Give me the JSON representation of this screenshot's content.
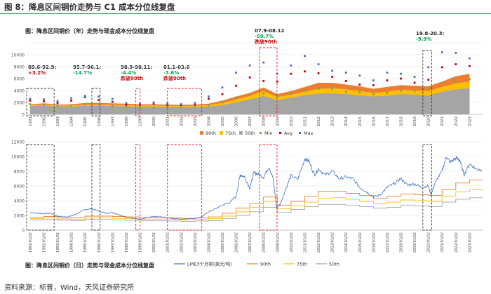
{
  "page": {
    "figure_title": "图 8：降息区间铜价走势与 C1 成本分位线复盘",
    "source": "资料来源：标普，Wind，天风证券研究所"
  },
  "colors": {
    "p90": "#ed7d31",
    "p75": "#ffc000",
    "p50": "#a5a5a5",
    "min": "#70ad47",
    "avg": "#c00000",
    "max": "#4472c4",
    "lme": "#4472c4",
    "box_black": "#333333",
    "box_red": "#e02020",
    "ann_red": "#c00000",
    "ann_green": "#00a650"
  },
  "chart_data": [
    {
      "type": "area",
      "title": "图：降息区间铜价（年）走势与现金成本分位线复盘",
      "x": [
        1991,
        1992,
        1993,
        1994,
        1995,
        1996,
        1997,
        1998,
        1999,
        2000,
        2001,
        2002,
        2003,
        2004,
        2005,
        2006,
        2007,
        2008,
        2009,
        2010,
        2011,
        2012,
        2013,
        2014,
        2015,
        2016,
        2017,
        2018,
        2019,
        2020,
        2021,
        2022,
        2023
      ],
      "x_tick_labels": [
        "1991",
        "1992",
        "1993",
        "1994",
        "1995",
        "1996",
        "1997",
        "1998",
        "1999",
        "2000",
        "2001",
        "2002",
        "2003",
        "2004",
        "2005",
        "2006",
        "2007",
        "2008",
        "2009",
        "2010",
        "2011",
        "2012",
        "2013",
        "2014",
        "2015",
        "2016",
        "2017",
        "2018",
        "2019",
        "2020",
        "2021",
        "2022",
        "2023"
      ],
      "ylim": [
        0,
        12000
      ],
      "y_ticks": [
        "0",
        "2000",
        "4000",
        "6000",
        "8000",
        "10000",
        "12000"
      ],
      "series": [
        {
          "name": "90th",
          "key": "p90",
          "values": [
            1700,
            1850,
            1650,
            1700,
            1900,
            1900,
            1850,
            1800,
            1700,
            1700,
            1650,
            1600,
            1650,
            1800,
            2300,
            3000,
            3600,
            4500,
            3400,
            3900,
            4600,
            5300,
            5300,
            5000,
            4700,
            4300,
            4600,
            4900,
            4800,
            4700,
            5500,
            6400,
            6800
          ]
        },
        {
          "name": "75th",
          "key": "p75",
          "values": [
            1550,
            1650,
            1500,
            1500,
            1650,
            1650,
            1600,
            1550,
            1500,
            1500,
            1450,
            1400,
            1450,
            1550,
            1900,
            2500,
            3100,
            3900,
            2900,
            3300,
            3800,
            4300,
            4400,
            4200,
            3900,
            3600,
            3800,
            4100,
            4000,
            3900,
            4600,
            5200,
            5500
          ]
        },
        {
          "name": "50th",
          "key": "p50",
          "values": [
            1400,
            1450,
            1350,
            1300,
            1450,
            1450,
            1400,
            1350,
            1300,
            1300,
            1250,
            1200,
            1250,
            1300,
            1550,
            2000,
            2500,
            3100,
            2400,
            2800,
            3200,
            3500,
            3500,
            3400,
            3200,
            3000,
            3100,
            3400,
            3300,
            3200,
            3800,
            4200,
            4400
          ]
        }
      ],
      "markers": [
        {
          "name": "Min",
          "key": "min",
          "values": [
            1700,
            1600,
            1500,
            1500,
            1700,
            1700,
            1400,
            1200,
            1100,
            1100,
            1200,
            1200,
            1300,
            1500,
            2000,
            2800,
            3200,
            3500,
            3000,
            3500,
            4000,
            4300,
            4300,
            3800,
            3700,
            3400,
            3600,
            4000,
            3900,
            4400,
            5300,
            5800,
            5900
          ]
        },
        {
          "name": "Avg",
          "key": "avg",
          "values": [
            2300,
            2200,
            1900,
            2300,
            2900,
            2400,
            2100,
            1600,
            1600,
            1800,
            1600,
            1600,
            1700,
            2600,
            3400,
            4800,
            6200,
            5600,
            5500,
            6800,
            7200,
            6900,
            6300,
            5600,
            5000,
            4900,
            5700,
            6000,
            5300,
            5800,
            7900,
            8400,
            8100
          ]
        },
        {
          "name": "Max",
          "key": "max",
          "values": [
            2600,
            2500,
            2200,
            2700,
            3100,
            3000,
            2600,
            1900,
            1800,
            2000,
            1800,
            1700,
            1900,
            3000,
            4500,
            7000,
            8200,
            8700,
            6800,
            8200,
            9800,
            8400,
            7300,
            7000,
            6500,
            5700,
            7000,
            6800,
            6300,
            7900,
            10400,
            10300,
            9400
          ]
        }
      ],
      "legend": [
        "90th",
        "75th",
        "50th",
        "Min",
        "Avg",
        "Max"
      ],
      "legend_position": "bottom"
    },
    {
      "type": "line",
      "title": "图：降息区间铜价（日）走势与现金成本分位线复盘",
      "x_tick_labels": [
        "1991/01/02",
        "1992/01/02",
        "1993/01/02",
        "1994/01/02",
        "1995/01/02",
        "1996/01/02",
        "1997/01/02",
        "1998/01/02",
        "1999/01/02",
        "2000/01/02",
        "2001/01/02",
        "2002/01/02",
        "2003/01/02",
        "2004/01/02",
        "2005/01/02",
        "2006/01/02",
        "2007/01/02",
        "2008/01/02",
        "2009/01/02",
        "2010/01/02",
        "2011/01/02",
        "2012/01/02",
        "2013/01/02",
        "2014/01/02",
        "2015/01/02",
        "2016/01/02",
        "2017/01/02",
        "2018/01/02",
        "2019/01/02",
        "2020/01/02",
        "2021/01/02",
        "2022/01/02",
        "2023/01/02"
      ],
      "ylim": [
        0,
        12000
      ],
      "y_ticks": [
        "0",
        "2000",
        "4000",
        "6000",
        "8000",
        "10000",
        "12000"
      ],
      "lme_series": {
        "name": "LME3个月铜(美元/吨)",
        "key": "lme",
        "x": [
          1991,
          1991.5,
          1992,
          1992.5,
          1993,
          1993.5,
          1994,
          1994.5,
          1995,
          1995.5,
          1996,
          1996.5,
          1997,
          1997.5,
          1998,
          1998.5,
          1999,
          1999.5,
          2000,
          2000.5,
          2001,
          2001.5,
          2002,
          2002.5,
          2003,
          2003.5,
          2004,
          2004.5,
          2005,
          2005.5,
          2006,
          2006.3,
          2006.6,
          2007,
          2007.3,
          2007.6,
          2008,
          2008.4,
          2008.7,
          2008.95,
          2009.2,
          2009.5,
          2010,
          2010.5,
          2011,
          2011.3,
          2011.7,
          2012,
          2012.5,
          2013,
          2013.5,
          2014,
          2014.5,
          2015,
          2015.5,
          2016,
          2016.5,
          2017,
          2017.5,
          2018,
          2018.5,
          2019,
          2019.5,
          2020,
          2020.2,
          2020.5,
          2021,
          2021.3,
          2021.6,
          2022,
          2022.3,
          2022.6,
          2023,
          2023.5,
          2023.9
        ],
        "values": [
          2400,
          2300,
          2250,
          2300,
          1900,
          1800,
          1900,
          2300,
          2800,
          2900,
          2600,
          2300,
          2400,
          2100,
          1750,
          1650,
          1450,
          1650,
          1850,
          1800,
          1700,
          1550,
          1500,
          1550,
          1600,
          1800,
          2500,
          2900,
          3400,
          3700,
          4600,
          7500,
          7300,
          5700,
          7800,
          7600,
          7200,
          8600,
          7000,
          3000,
          3500,
          5000,
          7400,
          6900,
          9700,
          9400,
          7500,
          8300,
          7500,
          8000,
          7000,
          7200,
          7000,
          5800,
          5200,
          4500,
          4800,
          5800,
          6300,
          7000,
          6100,
          6300,
          5800,
          6000,
          4800,
          6500,
          8000,
          10000,
          9200,
          9800,
          9500,
          7500,
          9000,
          8300,
          8200
        ]
      },
      "cost_lines": [
        {
          "name": "90th",
          "key": "p90",
          "values": [
            1700,
            1850,
            1650,
            1700,
            1900,
            1900,
            1850,
            1800,
            1700,
            1700,
            1650,
            1600,
            1650,
            1800,
            2300,
            3000,
            3600,
            4500,
            3400,
            3900,
            4600,
            5300,
            5300,
            5000,
            4700,
            4300,
            4600,
            4900,
            4800,
            4700,
            5500,
            6400,
            6800
          ]
        },
        {
          "name": "75th",
          "key": "p75",
          "values": [
            1550,
            1650,
            1500,
            1500,
            1650,
            1650,
            1600,
            1550,
            1500,
            1500,
            1450,
            1400,
            1450,
            1550,
            1900,
            2500,
            3100,
            3900,
            2900,
            3300,
            3800,
            4300,
            4400,
            4200,
            3900,
            3600,
            3800,
            4100,
            4000,
            3900,
            4600,
            5200,
            5500
          ]
        },
        {
          "name": "50th",
          "key": "p50",
          "values": [
            1400,
            1450,
            1350,
            1300,
            1450,
            1450,
            1400,
            1350,
            1300,
            1300,
            1250,
            1200,
            1250,
            1300,
            1550,
            2000,
            2500,
            3100,
            2400,
            2800,
            3200,
            3500,
            3500,
            3400,
            3200,
            3000,
            3100,
            3400,
            3300,
            3200,
            3800,
            4200,
            4400
          ]
        }
      ],
      "legend": [
        "LME3个月铜(美元/吨)",
        "90th",
        "75th",
        "50th"
      ],
      "legend_position": "bottom"
    }
  ],
  "rate_cut_periods": [
    {
      "period": "89.6-92.9:",
      "change": "+3.2%",
      "change_color": "ann_red",
      "note": "",
      "style": "black",
      "from": 1990.75,
      "to": 1992.75
    },
    {
      "period": "95.7-96.1:",
      "change": "-14.7%",
      "change_color": "ann_green",
      "note": "",
      "style": "black",
      "from": 1995.5,
      "to": 1996.1
    },
    {
      "period": "98.9-98.11:",
      "change": "-4.4%",
      "change_color": "ann_green",
      "note": "跌破90th",
      "style": "red",
      "from": 1998.7,
      "to": 1998.95
    },
    {
      "period": "01.1-03.6",
      "change": "-3.6%",
      "change_color": "ann_green",
      "note": "跌破90th",
      "style": "red",
      "from": 2001.0,
      "to": 2003.5
    },
    {
      "period": "07.9-08.12",
      "change": "-59.7%",
      "change_color": "ann_green",
      "note": "跌破90th",
      "style": "red",
      "from": 2007.7,
      "to": 2008.98
    },
    {
      "period": "19.8-20.3:",
      "change": "-9.9%",
      "change_color": "ann_green",
      "note": "",
      "style": "black",
      "from": 2019.6,
      "to": 2020.25
    }
  ]
}
